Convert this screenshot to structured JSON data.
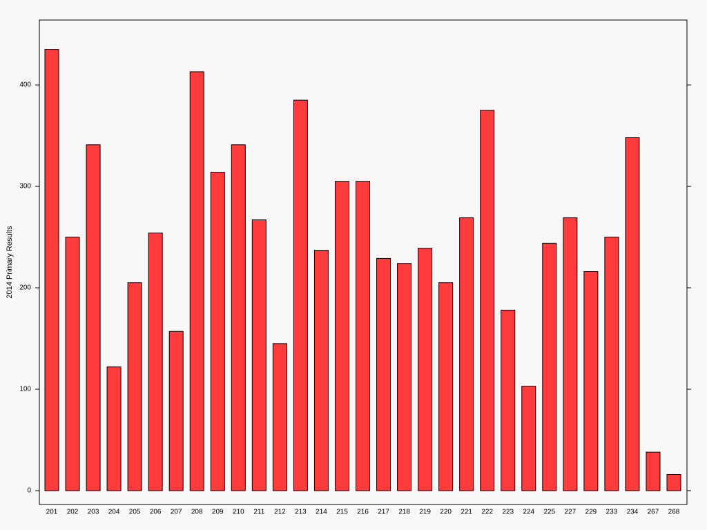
{
  "chart_data": {
    "type": "bar",
    "y_label": "2014 Primary Results",
    "categories": [
      "201",
      "202",
      "203",
      "204",
      "205",
      "206",
      "207",
      "208",
      "209",
      "210",
      "211",
      "212",
      "213",
      "214",
      "215",
      "216",
      "217",
      "218",
      "219",
      "220",
      "221",
      "222",
      "223",
      "224",
      "225",
      "227",
      "229",
      "233",
      "234",
      "267",
      "268"
    ],
    "values": [
      435,
      250,
      341,
      122,
      205,
      254,
      157,
      413,
      314,
      341,
      267,
      145,
      385,
      237,
      305,
      305,
      229,
      224,
      239,
      205,
      269,
      375,
      178,
      103,
      244,
      269,
      216,
      250,
      348,
      38,
      16
    ],
    "color": "#ff3b3b",
    "ylim": [
      -13.6,
      464
    ],
    "yticks": [
      0,
      100,
      200,
      300,
      400
    ],
    "grid": false
  }
}
